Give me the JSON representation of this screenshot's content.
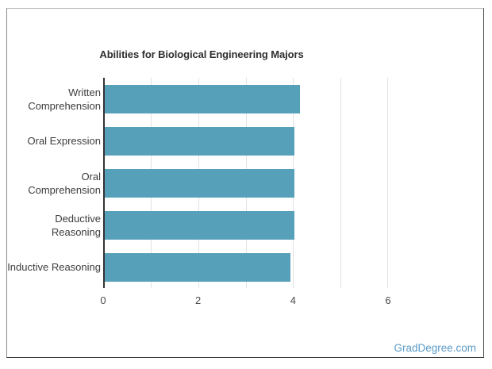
{
  "chart": {
    "title": "Abilities for Biological Engineering Majors"
  },
  "chart_data": {
    "type": "bar",
    "orientation": "horizontal",
    "title": "Abilities for Biological Engineering Majors",
    "categories": [
      "Written Comprehension",
      "Oral Expression",
      "Oral Comprehension",
      "Deductive Reasoning",
      "Inductive Reasoning"
    ],
    "label_lines": [
      [
        "Written",
        "Comprehension"
      ],
      [
        "Oral Expression"
      ],
      [
        "Oral Comprehension"
      ],
      [
        "Deductive",
        "Reasoning"
      ],
      [
        "Inductive Reasoning"
      ]
    ],
    "values": [
      4.13,
      4.02,
      4.02,
      4.01,
      3.94
    ],
    "xlabel": "",
    "ylabel": "",
    "xlim": [
      0,
      6
    ],
    "xticks": [
      "0",
      "2",
      "4",
      "6"
    ],
    "xtick_values": [
      0,
      2,
      4,
      6
    ],
    "gridline_values": [
      1,
      2,
      3,
      4,
      5,
      6
    ],
    "grid": true,
    "legend": false,
    "bar_color": "#57a0ba",
    "axis_color": "#333333",
    "gridline_color": "#e2e2e2"
  },
  "footer": {
    "watermark": "GradDegree.com",
    "watermark_color": "#5b9bc9"
  }
}
